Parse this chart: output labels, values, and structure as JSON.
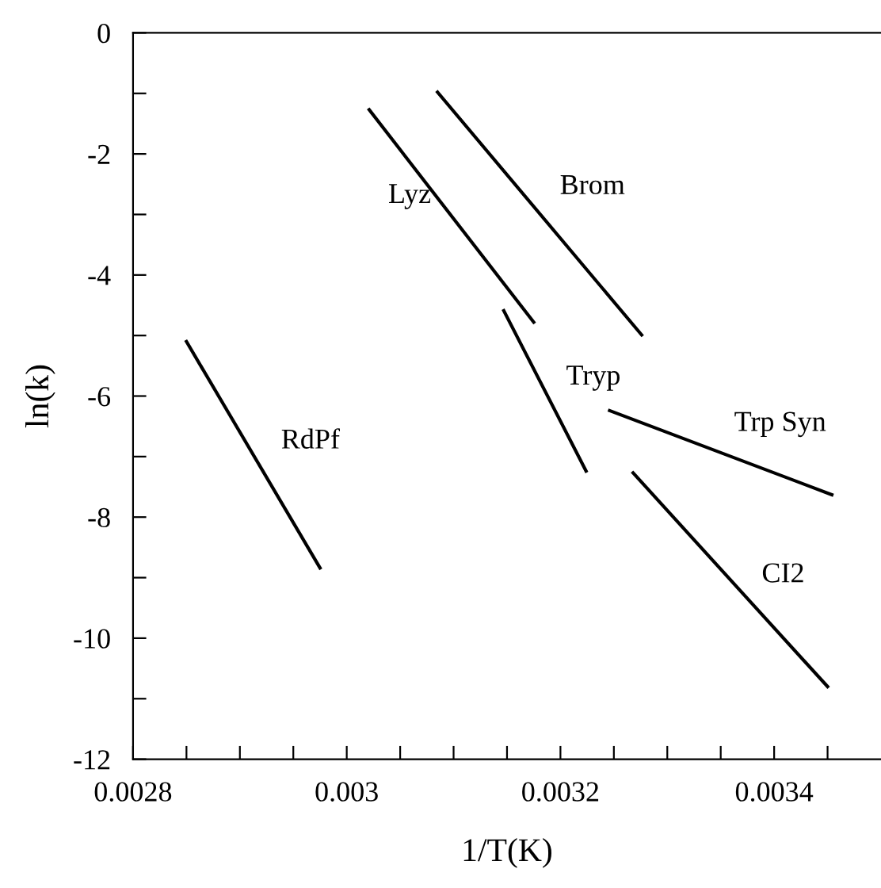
{
  "chart_data": {
    "type": "line",
    "xlabel": "1/T(K)",
    "ylabel": "ln(k)",
    "xlim": [
      0.0028,
      0.0035
    ],
    "ylim": [
      -12,
      0
    ],
    "xticks": [
      0.0028,
      {
        "value": 0.00285,
        "label": null
      },
      {
        "value": 0.0029,
        "label": null
      },
      {
        "value": 0.00295,
        "label": null
      },
      0.003,
      {
        "value": 0.00305,
        "label": null
      },
      {
        "value": 0.0031,
        "label": null
      },
      {
        "value": 0.00315,
        "label": null
      },
      0.0032,
      {
        "value": 0.00325,
        "label": null
      },
      {
        "value": 0.0033,
        "label": null
      },
      {
        "value": 0.00335,
        "label": null
      },
      0.0034,
      {
        "value": 0.00345,
        "label": null
      }
    ],
    "yticks": [
      -12,
      {
        "value": -11,
        "label": null
      },
      -10,
      {
        "value": -9,
        "label": null
      },
      -8,
      {
        "value": -7,
        "label": null
      },
      -6,
      {
        "value": -5,
        "label": null
      },
      -4,
      {
        "value": -3,
        "label": null
      },
      -2,
      {
        "value": -1,
        "label": null
      },
      0
    ],
    "grid": false,
    "legend": false,
    "marker": "none",
    "line_style": "solid",
    "series": [
      {
        "name": "RdPf",
        "color": "#000000",
        "x": [
          0.00285,
          0.002975
        ],
        "values": [
          -5.1,
          -8.84
        ]
      },
      {
        "name": "Lyz",
        "color": "#000000",
        "x": [
          0.003021,
          0.003175
        ],
        "values": [
          -1.27,
          -4.78
        ]
      },
      {
        "name": "Brom",
        "color": "#000000",
        "x": [
          0.003085,
          0.003276
        ],
        "values": [
          -0.98,
          -4.99
        ]
      },
      {
        "name": "Tryp",
        "color": "#000000",
        "x": [
          0.003147,
          0.003224
        ],
        "values": [
          -4.59,
          -7.24
        ]
      },
      {
        "name": "Trp Syn",
        "color": "#000000",
        "x": [
          0.003246,
          0.003454
        ],
        "values": [
          -6.24,
          -7.63
        ]
      },
      {
        "name": "CI2",
        "color": "#000000",
        "x": [
          0.003268,
          0.00345
        ],
        "values": [
          -7.27,
          -10.8
        ]
      }
    ]
  }
}
